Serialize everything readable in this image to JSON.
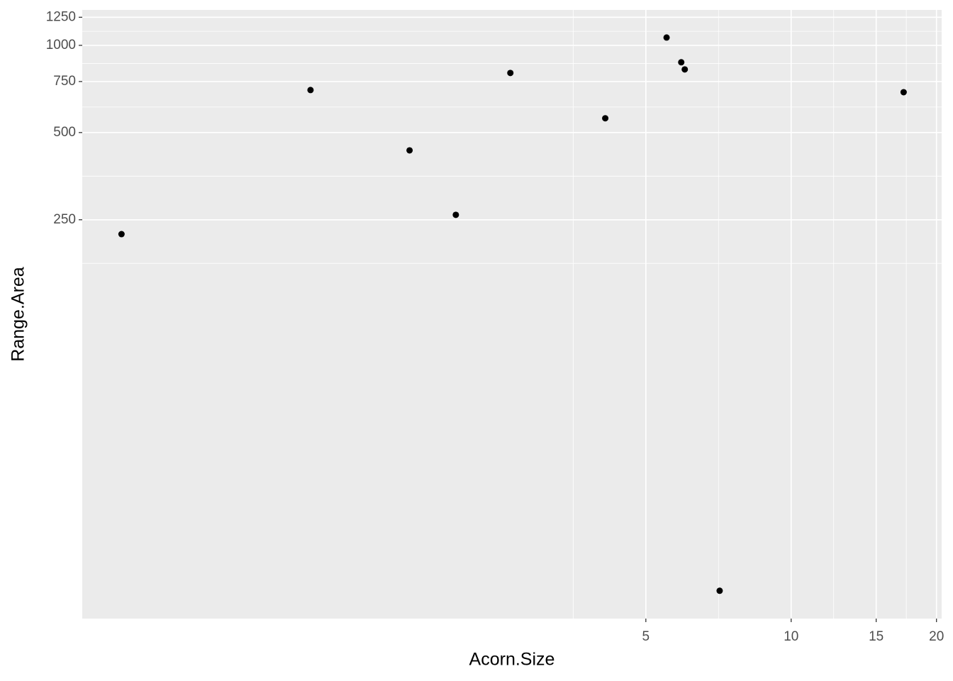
{
  "chart_data": {
    "type": "scatter",
    "x_label": "Acorn.Size",
    "y_label": "Range.Area",
    "x_log": true,
    "y_log": true,
    "grid": true,
    "color": "#000000",
    "x": [
      0.41,
      1.01,
      1.62,
      2.02,
      2.62,
      4.12,
      5.52,
      5.92,
      6.02,
      7.11,
      17.1
    ],
    "values": [
      223,
      701,
      434,
      260,
      803,
      560,
      1064,
      874,
      826,
      13.1,
      689
    ],
    "xlim": [
      0.34,
      20.5
    ],
    "xticks": [
      5,
      10,
      15,
      20
    ],
    "ylim": [
      10.5,
      1325
    ],
    "yticks": [
      250,
      500,
      750,
      1000,
      1250
    ]
  }
}
